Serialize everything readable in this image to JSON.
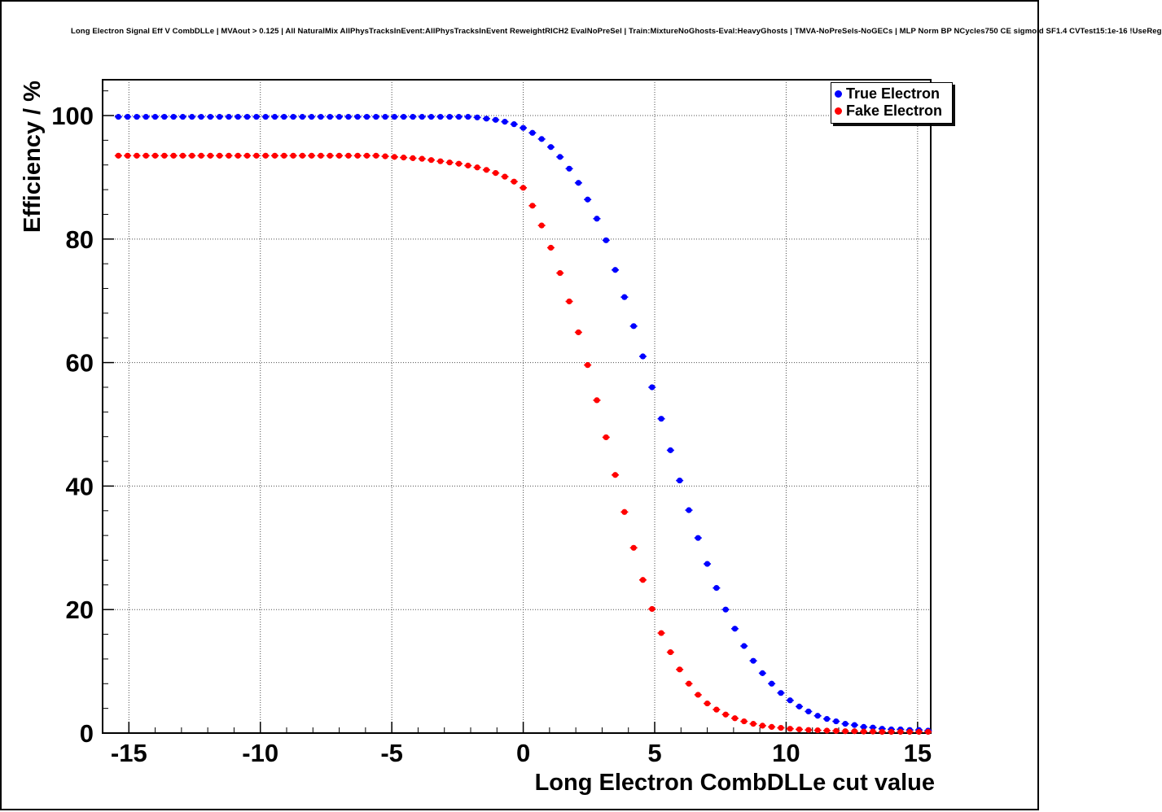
{
  "title": "Long Electron Signal Eff V CombDLLe | MVAout > 0.125 | All NaturalMix AllPhysTracksInEvent:AllPhysTracksInEvent ReweightRICH2 EvalNoPreSel | Train:MixtureNoGhosts-Eval:HeavyGhosts | TMVA-NoPreSels-NoGECs | MLP Norm BP NCycles750 CE sigmoid SF1.4 CVTest15:1e-16 !UseReg",
  "chart_data": {
    "type": "scatter",
    "title": "Long Electron Signal Eff V CombDLLe | MVAout > 0.125 | All NaturalMix AllPhysTracksInEvent:AllPhysTracksInEvent ReweightRICH2 EvalNoPreSel | Train:MixtureNoGhosts-Eval:HeavyGhosts | TMVA-NoPreSels-NoGECs | MLP Norm BP NCycles750 CE sigmoid SF1.4 CVTest15:1e-16 !UseReg",
    "xlabel": "Long Electron CombDLLe cut value",
    "ylabel": "Efficiency / %",
    "xlim": [
      -16,
      15.5
    ],
    "ylim": [
      0,
      105.8
    ],
    "x_major_ticks": [
      -15,
      -10,
      -5,
      0,
      5,
      10,
      15
    ],
    "y_major_ticks": [
      0,
      20,
      40,
      60,
      80,
      100
    ],
    "x_minor_step": 1,
    "y_minor_step": 4,
    "grid": true,
    "grid_style": "dotted",
    "legend_position": "top-right",
    "marker_style": "filled-circle",
    "x": [
      -15.4,
      -15.05,
      -14.7,
      -14.35,
      -14,
      -13.65,
      -13.3,
      -12.95,
      -12.6,
      -12.25,
      -11.9,
      -11.55,
      -11.2,
      -10.85,
      -10.5,
      -10.15,
      -9.8,
      -9.45,
      -9.1,
      -8.75,
      -8.4,
      -8.05,
      -7.7,
      -7.35,
      -7,
      -6.65,
      -6.3,
      -5.95,
      -5.6,
      -5.25,
      -4.9,
      -4.55,
      -4.2,
      -3.85,
      -3.5,
      -3.15,
      -2.8,
      -2.45,
      -2.1,
      -1.75,
      -1.4,
      -1.05,
      -0.7,
      -0.35,
      0,
      0.35,
      0.7,
      1.05,
      1.4,
      1.75,
      2.1,
      2.45,
      2.8,
      3.15,
      3.5,
      3.85,
      4.2,
      4.55,
      4.9,
      5.25,
      5.6,
      5.95,
      6.3,
      6.65,
      7,
      7.35,
      7.7,
      8.05,
      8.4,
      8.75,
      9.1,
      9.45,
      9.8,
      10.15,
      10.5,
      10.85,
      11.2,
      11.55,
      11.9,
      12.25,
      12.6,
      12.95,
      13.3,
      13.65,
      14,
      14.35,
      14.7,
      15.05,
      15.4
    ],
    "series": [
      {
        "name": "True Electron",
        "color": "#0000ff",
        "values": [
          99.8,
          99.8,
          99.8,
          99.8,
          99.8,
          99.8,
          99.8,
          99.8,
          99.8,
          99.8,
          99.8,
          99.8,
          99.8,
          99.8,
          99.8,
          99.8,
          99.8,
          99.8,
          99.8,
          99.8,
          99.8,
          99.8,
          99.8,
          99.8,
          99.8,
          99.8,
          99.8,
          99.8,
          99.8,
          99.8,
          99.8,
          99.8,
          99.8,
          99.8,
          99.8,
          99.8,
          99.8,
          99.8,
          99.8,
          99.7,
          99.5,
          99.3,
          99.0,
          98.6,
          98.0,
          97.2,
          96.2,
          94.9,
          93.3,
          91.4,
          89.1,
          86.4,
          83.3,
          79.8,
          75.0,
          70.6,
          65.9,
          61.0,
          56.0,
          50.9,
          45.8,
          40.9,
          36.1,
          31.6,
          27.4,
          23.5,
          20.0,
          16.9,
          14.1,
          11.7,
          9.7,
          8.0,
          6.5,
          5.3,
          4.3,
          3.5,
          2.8,
          2.3,
          1.9,
          1.5,
          1.3,
          1.0,
          0.9,
          0.7,
          0.6,
          0.6,
          0.5,
          0.5,
          0.4
        ]
      },
      {
        "name": "Fake Electron",
        "color": "#ff0000",
        "values": [
          93.5,
          93.5,
          93.5,
          93.5,
          93.5,
          93.5,
          93.5,
          93.5,
          93.5,
          93.5,
          93.5,
          93.5,
          93.5,
          93.5,
          93.5,
          93.5,
          93.5,
          93.5,
          93.5,
          93.5,
          93.5,
          93.5,
          93.5,
          93.5,
          93.5,
          93.5,
          93.5,
          93.5,
          93.5,
          93.4,
          93.3,
          93.2,
          93.1,
          93.0,
          92.8,
          92.6,
          92.4,
          92.2,
          91.9,
          91.6,
          91.2,
          90.7,
          90.1,
          89.3,
          88.3,
          85.4,
          82.2,
          78.6,
          74.5,
          69.9,
          64.9,
          59.6,
          53.9,
          47.9,
          41.8,
          35.8,
          30.0,
          24.8,
          20.1,
          16.2,
          13.1,
          10.3,
          8.0,
          6.2,
          4.8,
          3.8,
          3.0,
          2.4,
          1.9,
          1.5,
          1.2,
          1.0,
          0.85,
          0.7,
          0.6,
          0.5,
          0.45,
          0.4,
          0.35,
          0.3,
          0.3,
          0.25,
          0.25,
          0.2,
          0.2,
          0.2,
          0.2,
          0.2,
          0.2
        ]
      }
    ]
  },
  "colors": {
    "frame": "#000000",
    "grid": "#4d4d4d",
    "background": "#ffffff",
    "true_electron": "#0000ff",
    "fake_electron": "#ff0000"
  }
}
